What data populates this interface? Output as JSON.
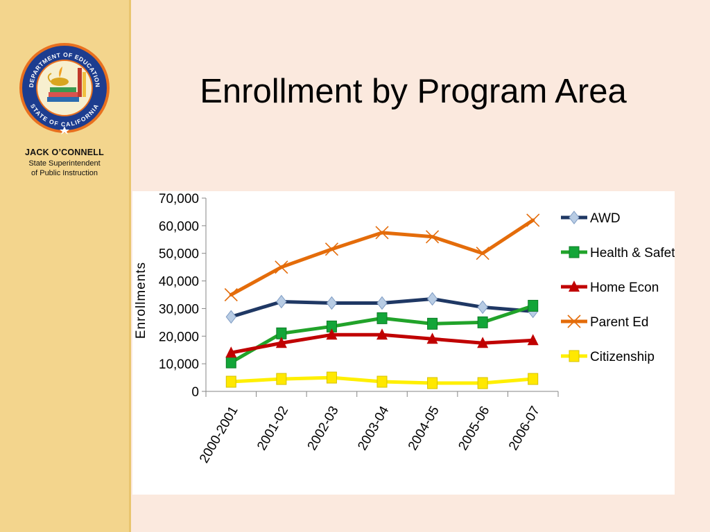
{
  "sidebar": {
    "seal": {
      "top_text": "DEPARTMENT OF EDUCATION",
      "bottom_text": "STATE OF CALIFORNIA",
      "colors": {
        "ring": "#1d3d8f",
        "border": "#e8701f",
        "inner": "#f7efcf"
      }
    },
    "person_name": "JACK O’CONNELL",
    "person_title_line1": "State Superintendent",
    "person_title_line2": "of Public Instruction"
  },
  "slide": {
    "title": "Enrollment by Program Area"
  },
  "chart_data": {
    "type": "line",
    "title": "",
    "xlabel": "",
    "ylabel": "Enrollments",
    "ylim": [
      0,
      70000
    ],
    "yticks": [
      "0",
      "10,000",
      "20,000",
      "30,000",
      "40,000",
      "50,000",
      "60,000",
      "70,000"
    ],
    "grid": false,
    "legend_position": "right",
    "categories": [
      "2000-2001",
      "2001-02",
      "2002-03",
      "2003-04",
      "2004-05",
      "2005-06",
      "2006-07"
    ],
    "series": [
      {
        "name": "AWD",
        "color": "#1f3864",
        "marker": "diamond",
        "marker_color": "#b8cce4",
        "values": [
          27000,
          32500,
          32000,
          32000,
          33500,
          30500,
          29000
        ]
      },
      {
        "name": "Health & Safety",
        "color": "#21a32a",
        "marker": "square",
        "marker_color": "#13a538",
        "values": [
          10500,
          21000,
          23500,
          26500,
          24500,
          25000,
          31000
        ]
      },
      {
        "name": "Home Econ",
        "color": "#c00000",
        "marker": "triangle",
        "marker_color": "#c00000",
        "values": [
          14000,
          17500,
          20500,
          20500,
          19000,
          17500,
          18500
        ]
      },
      {
        "name": "Parent Ed",
        "color": "#e46c0a",
        "marker": "x",
        "marker_color": "#e46c0a",
        "values": [
          35000,
          45000,
          51500,
          57500,
          56000,
          50000,
          62000
        ]
      },
      {
        "name": "Citizenship",
        "color": "#ffef00",
        "marker": "square",
        "marker_color": "#ffe800",
        "values": [
          3500,
          4500,
          5000,
          3500,
          3000,
          3000,
          4500
        ]
      }
    ]
  }
}
